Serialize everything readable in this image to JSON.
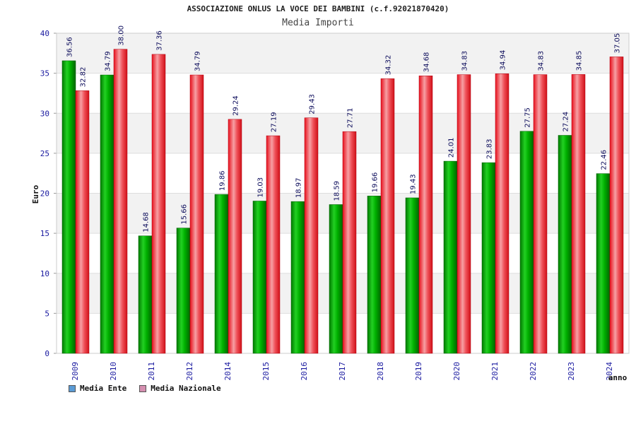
{
  "chart_data": {
    "type": "bar",
    "title": "ASSOCIAZIONE ONLUS LA VOCE DEI BAMBINI (c.f.92021870420)",
    "subtitle": "Media Importi",
    "ylabel": "Euro",
    "xlabel": "anno",
    "ylim": [
      0,
      40
    ],
    "yticks": [
      "0",
      "5",
      "10",
      "15",
      "20",
      "25",
      "30",
      "35",
      "40"
    ],
    "categories": [
      "2009",
      "2010",
      "2011",
      "2012",
      "2014",
      "2015",
      "2016",
      "2017",
      "2018",
      "2019",
      "2020",
      "2021",
      "2022",
      "2023",
      "2024"
    ],
    "series": [
      {
        "name": "Media Ente",
        "values": [
          36.56,
          34.79,
          14.68,
          15.66,
          19.86,
          19.03,
          18.97,
          18.59,
          19.66,
          19.43,
          24.01,
          23.83,
          27.75,
          27.24,
          22.46
        ],
        "labels": [
          "36.56",
          "34.79",
          "14.68",
          "15.66",
          "19.86",
          "19.03",
          "18.97",
          "18.59",
          "19.66",
          "19.43",
          "24.01",
          "23.83",
          "27.75",
          "27.24",
          "22.46"
        ],
        "color": "#00a000",
        "legend_color": "#5b9bd5"
      },
      {
        "name": "Media Nazionale",
        "values": [
          32.82,
          38.0,
          37.36,
          34.79,
          29.24,
          27.19,
          29.43,
          27.71,
          34.32,
          34.68,
          34.83,
          34.94,
          34.83,
          34.85,
          37.05
        ],
        "labels": [
          "32.82",
          "38.00",
          "37.36",
          "34.79",
          "29.24",
          "27.19",
          "29.43",
          "27.71",
          "34.32",
          "34.68",
          "34.83",
          "34.94",
          "34.83",
          "34.85",
          "37.05"
        ],
        "color": "#e8202a",
        "legend_color": "#d58fb0"
      }
    ],
    "grid": true,
    "legend_position": "bottom-left"
  }
}
